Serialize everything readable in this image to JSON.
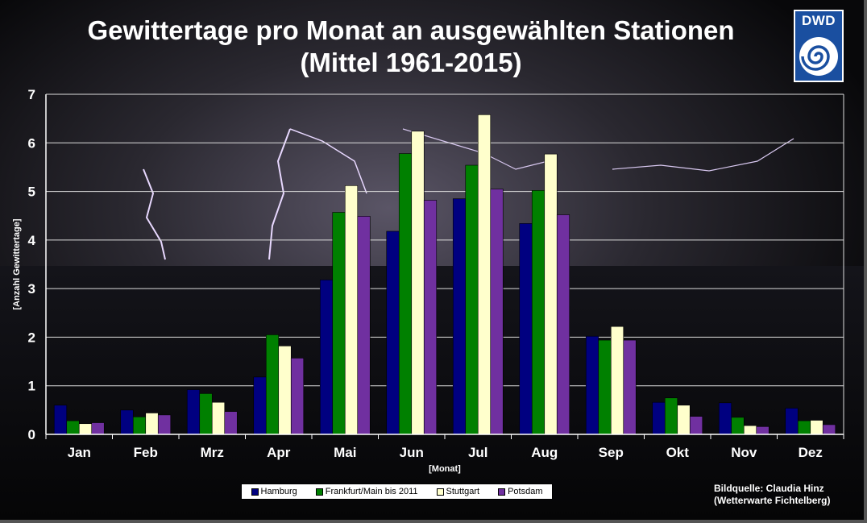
{
  "title_line1": "Gewittertage pro Monat an ausgewählten Stationen",
  "title_line2": "(Mittel 1961-2015)",
  "logo_text": "DWD",
  "credit_line1": "Bildquelle: Claudia Hinz",
  "credit_line2": "(Wetterwarte Fichtelberg)",
  "chart_data": {
    "type": "bar",
    "xlabel": "[Monat]",
    "ylabel": "[Anzahl Gewittertage]",
    "ylim": [
      0,
      7
    ],
    "yticks": [
      "0",
      "1",
      "2",
      "3",
      "4",
      "5",
      "6",
      "7"
    ],
    "grid": true,
    "legend_position": "bottom",
    "categories": [
      "Jan",
      "Feb",
      "Mrz",
      "Apr",
      "Mai",
      "Jun",
      "Jul",
      "Aug",
      "Sep",
      "Okt",
      "Nov",
      "Dez"
    ],
    "series": [
      {
        "name": "Hamburg",
        "color": "#000080",
        "values": [
          0.6,
          0.5,
          0.92,
          1.18,
          3.18,
          4.18,
          4.85,
          4.34,
          2.02,
          0.66,
          0.65,
          0.54
        ]
      },
      {
        "name": "Frankfurt/Main bis 2011",
        "color": "#008000",
        "values": [
          0.28,
          0.36,
          0.84,
          2.05,
          4.57,
          5.78,
          5.54,
          5.02,
          1.94,
          0.75,
          0.35,
          0.28
        ]
      },
      {
        "name": "Stuttgart",
        "color": "#ffffcc",
        "values": [
          0.22,
          0.44,
          0.66,
          1.82,
          5.12,
          6.24,
          6.58,
          5.77,
          2.22,
          0.6,
          0.18,
          0.29
        ]
      },
      {
        "name": "Potsdam",
        "color": "#7030a0",
        "values": [
          0.24,
          0.4,
          0.47,
          1.57,
          4.49,
          4.82,
          5.05,
          4.52,
          1.94,
          0.37,
          0.16,
          0.2
        ]
      }
    ]
  }
}
